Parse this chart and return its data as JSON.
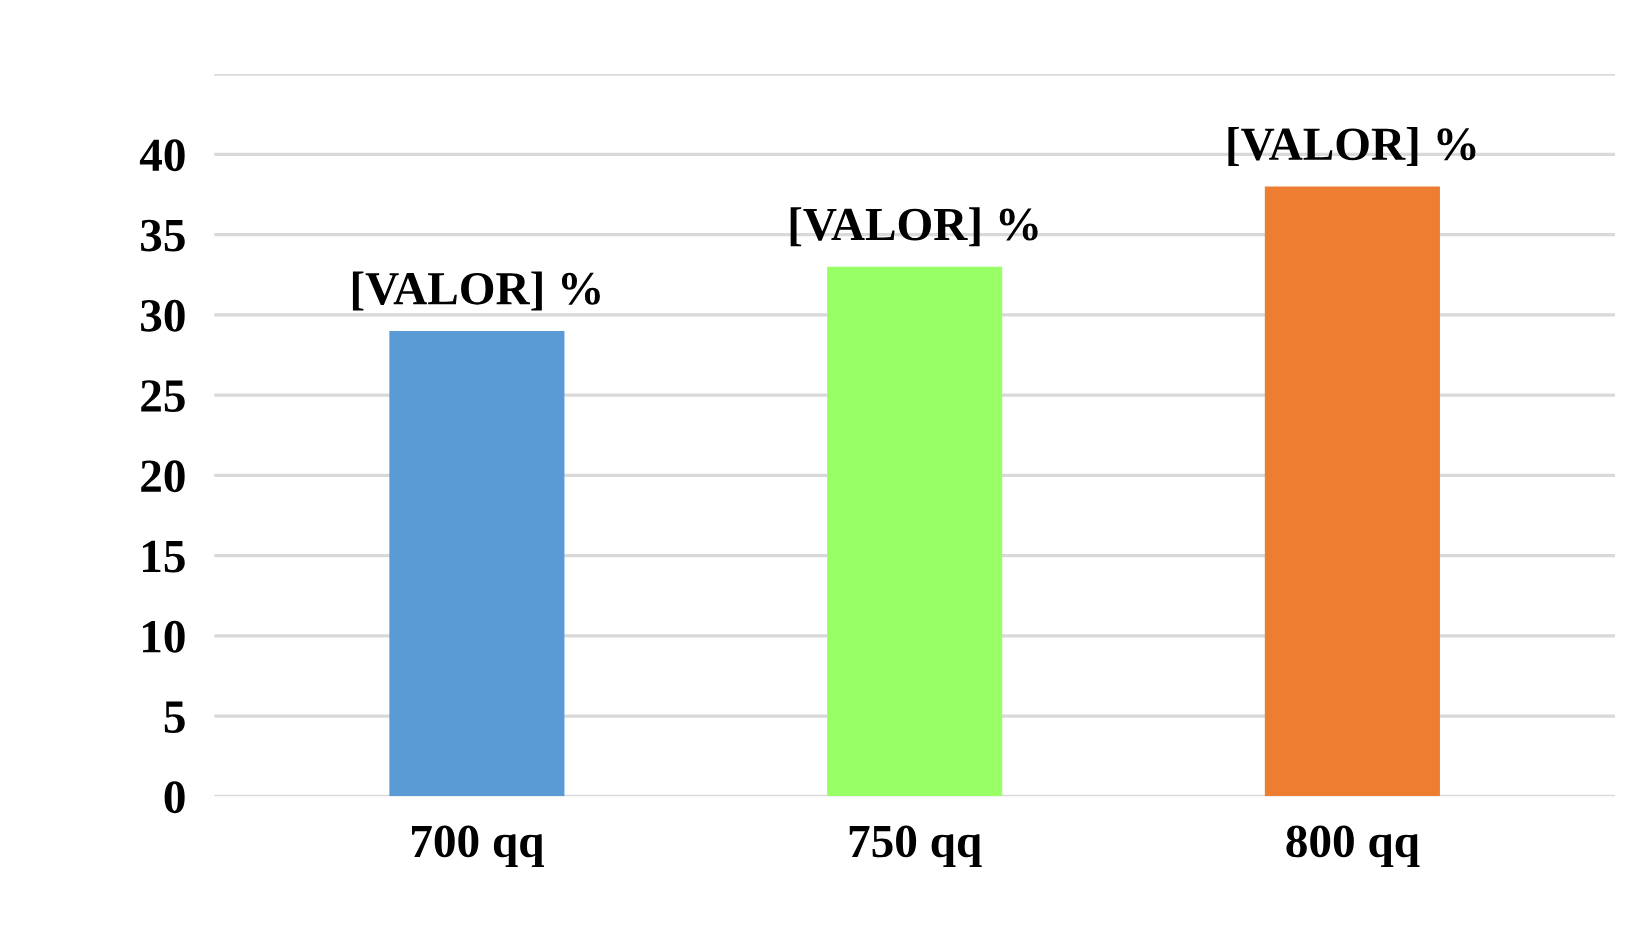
{
  "chart_data": {
    "type": "bar",
    "categories": [
      "700 qq",
      "750 qq",
      "800 qq"
    ],
    "values": [
      29,
      33,
      38
    ],
    "colors": [
      "#5b9bd5",
      "#99ff66",
      "#ed7d31"
    ],
    "value_labels": [
      "[VALOR] %",
      "[VALOR] %",
      "[VALOR] %"
    ],
    "ylim": [
      0,
      45
    ],
    "yticks": [
      0,
      5,
      10,
      15,
      20,
      25,
      30,
      35,
      40,
      {
        "value": 45,
        "label": null
      }
    ],
    "grid": "y"
  }
}
